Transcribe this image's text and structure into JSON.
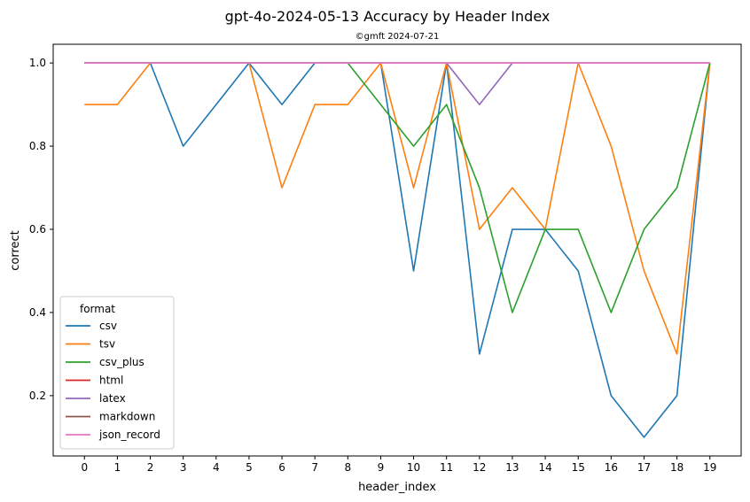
{
  "chart_data": {
    "type": "line",
    "title": "gpt-4o-2024-05-13 Accuracy by Header Index",
    "subtitle": "©gmft 2024-07-21",
    "xlabel": "header_index",
    "ylabel": "correct",
    "x": [
      0,
      1,
      2,
      3,
      4,
      5,
      6,
      7,
      8,
      9,
      10,
      11,
      12,
      13,
      14,
      15,
      16,
      17,
      18,
      19
    ],
    "xlim": [
      -0.95,
      19.95
    ],
    "ylim": [
      0.055,
      1.045
    ],
    "yticks": [
      0.2,
      0.4,
      0.6,
      0.8,
      1.0
    ],
    "ytick_labels": [
      "0.2",
      "0.4",
      "0.6",
      "0.8",
      "1.0"
    ],
    "grid": false,
    "legend": {
      "title": "format",
      "placement": "lower-left"
    },
    "series": [
      {
        "name": "csv",
        "color": "#1f77b4",
        "values": [
          1.0,
          1.0,
          1.0,
          0.8,
          0.9,
          1.0,
          0.9,
          1.0,
          1.0,
          1.0,
          0.5,
          1.0,
          0.3,
          0.6,
          0.6,
          0.5,
          0.2,
          0.1,
          0.2,
          1.0
        ]
      },
      {
        "name": "tsv",
        "color": "#ff7f0e",
        "values": [
          0.9,
          0.9,
          1.0,
          1.0,
          1.0,
          1.0,
          0.7,
          0.9,
          0.9,
          1.0,
          0.7,
          1.0,
          0.6,
          0.7,
          0.6,
          1.0,
          0.8,
          0.5,
          0.3,
          1.0
        ]
      },
      {
        "name": "csv_plus",
        "color": "#2ca02c",
        "values": [
          1.0,
          1.0,
          1.0,
          1.0,
          1.0,
          1.0,
          1.0,
          1.0,
          1.0,
          0.9,
          0.8,
          0.9,
          0.7,
          0.4,
          0.6,
          0.6,
          0.4,
          0.6,
          0.7,
          1.0
        ]
      },
      {
        "name": "html",
        "color": "#d62728",
        "values": [
          1.0,
          1.0,
          1.0,
          1.0,
          1.0,
          1.0,
          1.0,
          1.0,
          1.0,
          1.0,
          1.0,
          1.0,
          1.0,
          1.0,
          1.0,
          1.0,
          1.0,
          1.0,
          1.0,
          1.0
        ]
      },
      {
        "name": "latex",
        "color": "#9467bd",
        "values": [
          1.0,
          1.0,
          1.0,
          1.0,
          1.0,
          1.0,
          1.0,
          1.0,
          1.0,
          1.0,
          1.0,
          1.0,
          0.9,
          1.0,
          1.0,
          1.0,
          1.0,
          1.0,
          1.0,
          1.0
        ]
      },
      {
        "name": "markdown",
        "color": "#8c564b",
        "values": [
          1.0,
          1.0,
          1.0,
          1.0,
          1.0,
          1.0,
          1.0,
          1.0,
          1.0,
          1.0,
          1.0,
          1.0,
          1.0,
          1.0,
          1.0,
          1.0,
          1.0,
          1.0,
          1.0,
          1.0
        ]
      },
      {
        "name": "json_record",
        "color": "#e377c2",
        "values": [
          1.0,
          1.0,
          1.0,
          1.0,
          1.0,
          1.0,
          1.0,
          1.0,
          1.0,
          1.0,
          1.0,
          1.0,
          1.0,
          1.0,
          1.0,
          1.0,
          1.0,
          1.0,
          1.0,
          1.0
        ]
      }
    ]
  }
}
